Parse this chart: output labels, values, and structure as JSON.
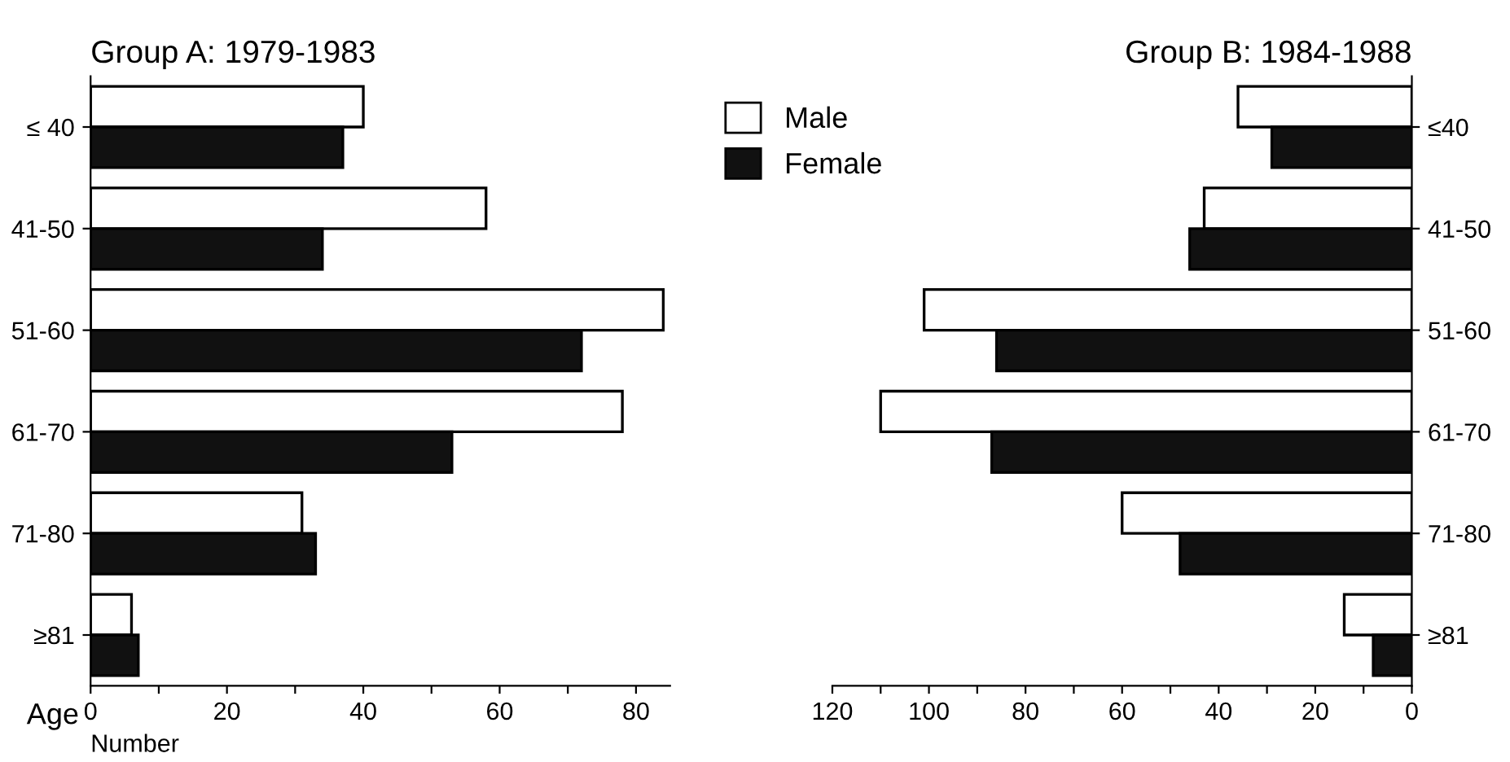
{
  "chart_data": [
    {
      "type": "bar",
      "orientation": "horizontal",
      "title": "Group A: 1979-1983",
      "xlabel": "Number",
      "ylabel": "Age",
      "categories": [
        "≤ 40",
        "41-50",
        "51-60",
        "61-70",
        "71-80",
        "≥81"
      ],
      "xlim": [
        0,
        85
      ],
      "xticks": [
        0,
        {
          "value": 10,
          "label": null
        },
        20,
        {
          "value": 30,
          "label": null
        },
        40,
        {
          "value": 50,
          "label": null
        },
        60,
        {
          "value": 70,
          "label": null
        },
        80
      ],
      "legend": "top right",
      "series": [
        {
          "name": "Male",
          "color": "#ffffff",
          "values": [
            40,
            58,
            84,
            78,
            31,
            6
          ]
        },
        {
          "name": "Female",
          "color": "#111111",
          "values": [
            37,
            34,
            72,
            53,
            33,
            7
          ]
        }
      ]
    },
    {
      "type": "bar",
      "orientation": "horizontal",
      "title": "Group B: 1984-1988",
      "categories": [
        "≤40",
        "41-50",
        "51-60",
        "61-70",
        "71-80",
        "≥81"
      ],
      "xlim": [
        120,
        0
      ],
      "xticks": [
        120,
        {
          "value": 110,
          "label": null
        },
        100,
        {
          "value": 90,
          "label": null
        },
        80,
        {
          "value": 70,
          "label": null
        },
        60,
        {
          "value": 50,
          "label": null
        },
        40,
        {
          "value": 30,
          "label": null
        },
        20,
        {
          "value": 10,
          "label": null
        },
        0
      ],
      "series": [
        {
          "color": "#ffffff",
          "values": [
            36,
            43,
            101,
            110,
            60,
            14
          ]
        },
        {
          "color": "#111111",
          "values": [
            29,
            46,
            86,
            87,
            48,
            8
          ]
        }
      ]
    }
  ]
}
